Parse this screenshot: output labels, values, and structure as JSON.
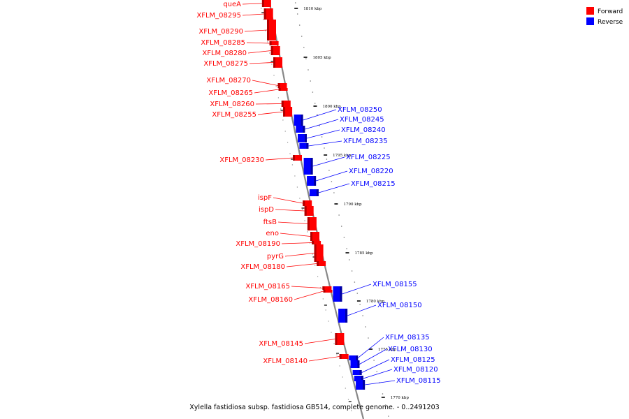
{
  "colors": {
    "forward": "#ff0000",
    "reverse": "#0000ff",
    "backbone": "#888888"
  },
  "legend": [
    {
      "label": "Forward",
      "strand": "forward"
    },
    {
      "label": "Reverse",
      "strand": "reverse"
    }
  ],
  "caption": "Xylella fastidiosa subsp. fastidiosa GB514, complete genome. - 0..2491203",
  "tick_labels": [
    "1810 kbp",
    "1805 kbp",
    "1800 kbp",
    "1795 kbp",
    "1790 kbp",
    "1785 kbp",
    "1780 kbp",
    "1775 kbp",
    "1770 kbp"
  ],
  "genes": [
    {
      "label": "queA",
      "strand": "forward"
    },
    {
      "label": "XFLM_08295",
      "strand": "forward"
    },
    {
      "label": "XFLM_08290",
      "strand": "forward"
    },
    {
      "label": "XFLM_08285",
      "strand": "forward"
    },
    {
      "label": "XFLM_08280",
      "strand": "forward"
    },
    {
      "label": "XFLM_08275",
      "strand": "forward"
    },
    {
      "label": "XFLM_08270",
      "strand": "forward"
    },
    {
      "label": "XFLM_08265",
      "strand": "forward"
    },
    {
      "label": "XFLM_08260",
      "strand": "forward"
    },
    {
      "label": "XFLM_08255",
      "strand": "forward"
    },
    {
      "label": "XFLM_08250",
      "strand": "reverse"
    },
    {
      "label": "XFLM_08245",
      "strand": "reverse"
    },
    {
      "label": "XFLM_08240",
      "strand": "reverse"
    },
    {
      "label": "XFLM_08235",
      "strand": "reverse"
    },
    {
      "label": "XFLM_08230",
      "strand": "forward"
    },
    {
      "label": "XFLM_08225",
      "strand": "reverse"
    },
    {
      "label": "XFLM_08220",
      "strand": "reverse"
    },
    {
      "label": "XFLM_08215",
      "strand": "reverse"
    },
    {
      "label": "ispF",
      "strand": "forward"
    },
    {
      "label": "ispD",
      "strand": "forward"
    },
    {
      "label": "ftsB",
      "strand": "forward"
    },
    {
      "label": "eno",
      "strand": "forward"
    },
    {
      "label": "XFLM_08190",
      "strand": "forward"
    },
    {
      "label": "pyrG",
      "strand": "forward"
    },
    {
      "label": "XFLM_08180",
      "strand": "forward"
    },
    {
      "label": "XFLM_08165",
      "strand": "forward"
    },
    {
      "label": "XFLM_08160",
      "strand": "forward"
    },
    {
      "label": "XFLM_08155",
      "strand": "reverse"
    },
    {
      "label": "XFLM_08150",
      "strand": "reverse"
    },
    {
      "label": "XFLM_08145",
      "strand": "forward"
    },
    {
      "label": "XFLM_08140",
      "strand": "forward"
    },
    {
      "label": "XFLM_08135",
      "strand": "reverse"
    },
    {
      "label": "XFLM_08130",
      "strand": "reverse"
    },
    {
      "label": "XFLM_08125",
      "strand": "reverse"
    },
    {
      "label": "XFLM_08120",
      "strand": "reverse"
    },
    {
      "label": "XFLM_08115",
      "strand": "reverse"
    }
  ]
}
